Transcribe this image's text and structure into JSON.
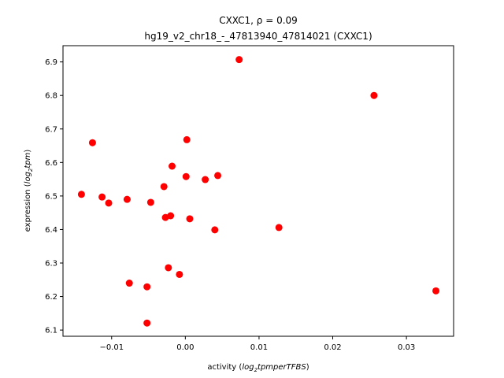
{
  "chart_data": {
    "type": "scatter",
    "title_line1": "CXXC1, ρ = 0.09",
    "title_line2": "hg19_v2_chr18_-_47813940_47814021 (CXXC1)",
    "xlabel_prefix": "activity (",
    "xlabel_math": "log",
    "xlabel_sub": "2",
    "xlabel_rest": "tpmperTFBS",
    "xlabel_suffix": ")",
    "ylabel_prefix": "expression (",
    "ylabel_math": "log",
    "ylabel_sub": "2",
    "ylabel_rest": "tpm",
    "ylabel_suffix": ")",
    "xlim": [
      -0.0166,
      0.0364
    ],
    "ylim": [
      6.0815,
      6.9485
    ],
    "xticks": [
      -0.01,
      0.0,
      0.01,
      0.02,
      0.03
    ],
    "xtick_labels": [
      "−0.01",
      "0.00",
      "0.01",
      "0.02",
      "0.03"
    ],
    "yticks": [
      6.1,
      6.2,
      6.3,
      6.4,
      6.5,
      6.6,
      6.7,
      6.8,
      6.9
    ],
    "ytick_labels": [
      "6.1",
      "6.2",
      "6.3",
      "6.4",
      "6.5",
      "6.6",
      "6.7",
      "6.8",
      "6.9"
    ],
    "grid": false,
    "marker_color": "#ff0000",
    "points": [
      {
        "x": -0.0141,
        "y": 6.505
      },
      {
        "x": -0.0126,
        "y": 6.659
      },
      {
        "x": -0.0113,
        "y": 6.497
      },
      {
        "x": -0.0104,
        "y": 6.479
      },
      {
        "x": -0.0079,
        "y": 6.49
      },
      {
        "x": -0.0076,
        "y": 6.24
      },
      {
        "x": -0.0052,
        "y": 6.229
      },
      {
        "x": -0.0052,
        "y": 6.121
      },
      {
        "x": -0.0047,
        "y": 6.481
      },
      {
        "x": -0.0029,
        "y": 6.528
      },
      {
        "x": -0.0027,
        "y": 6.436
      },
      {
        "x": -0.0023,
        "y": 6.286
      },
      {
        "x": -0.002,
        "y": 6.441
      },
      {
        "x": -0.0018,
        "y": 6.589
      },
      {
        "x": -0.0008,
        "y": 6.266
      },
      {
        "x": 0.0001,
        "y": 6.558
      },
      {
        "x": 0.0002,
        "y": 6.668
      },
      {
        "x": 0.0006,
        "y": 6.432
      },
      {
        "x": 0.0027,
        "y": 6.549
      },
      {
        "x": 0.004,
        "y": 6.399
      },
      {
        "x": 0.0044,
        "y": 6.561
      },
      {
        "x": 0.0073,
        "y": 6.907
      },
      {
        "x": 0.0127,
        "y": 6.406
      },
      {
        "x": 0.0256,
        "y": 6.8
      },
      {
        "x": 0.034,
        "y": 6.217
      }
    ]
  }
}
